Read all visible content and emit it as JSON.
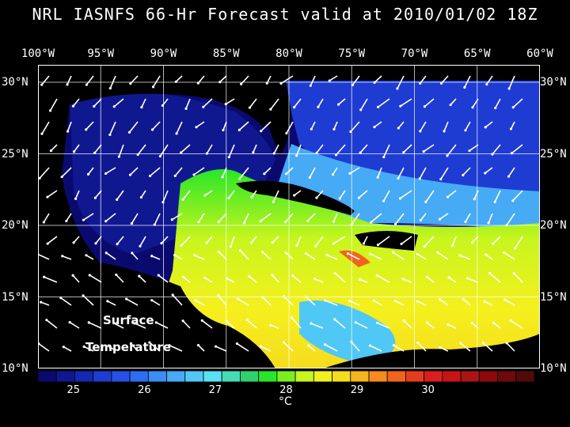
{
  "title": "NRL IASNFS  66-Hr Forecast valid at 2010/01/02 18Z",
  "lon_labels": [
    "100°W",
    "95°W",
    "90°W",
    "85°W",
    "80°W",
    "75°W",
    "70°W",
    "65°W",
    "60°W"
  ],
  "lat_labels": [
    "30°N",
    "25°N",
    "20°N",
    "15°N",
    "10°N"
  ],
  "plot_label_line1": "Surface",
  "plot_label_line2": "Temperature",
  "colorbar": {
    "ticks": [
      "25",
      "26",
      "27",
      "28",
      "29",
      "30"
    ],
    "units": "°C",
    "colors": [
      "#0a0a6e",
      "#101890",
      "#1428b4",
      "#1e3cd2",
      "#2850e6",
      "#2d6ef0",
      "#3c8cf5",
      "#46aaf5",
      "#50c8f5",
      "#5ae1f0",
      "#46dcb4",
      "#2dd26e",
      "#28e628",
      "#78f01e",
      "#c8f51e",
      "#f0f01e",
      "#f5dc1e",
      "#f5b41e",
      "#f58c1e",
      "#f0641e",
      "#e63c1e",
      "#dc1e1e",
      "#c81414",
      "#aa1414",
      "#8c0a0a",
      "#6e0a0a",
      "#500a0a"
    ]
  },
  "chart_data": {
    "type": "heatmap",
    "variable": "Surface Temperature",
    "units": "°C",
    "forecast_hour": 66,
    "valid_time": "2010/01/02 18Z",
    "lon_range": [
      -100,
      -60
    ],
    "lat_range": [
      10,
      30
    ],
    "color_scale_range": [
      24.5,
      31.5
    ],
    "grid": true
  }
}
